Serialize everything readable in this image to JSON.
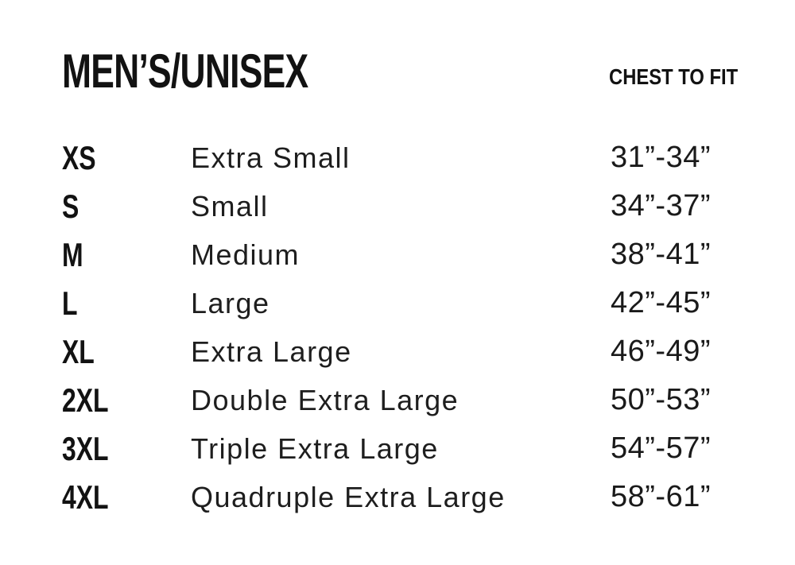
{
  "header": {
    "title": "MEN’S/UNISEX",
    "chest_header": "CHEST TO FIT"
  },
  "size_chart": {
    "rows": [
      {
        "code": "XS",
        "name": "Extra Small",
        "chest": "31”-34”"
      },
      {
        "code": "S",
        "name": "Small",
        "chest": "34”-37”"
      },
      {
        "code": "M",
        "name": "Medium",
        "chest": "38”-41”"
      },
      {
        "code": "L",
        "name": "Large",
        "chest": "42”-45”"
      },
      {
        "code": "XL",
        "name": "Extra Large",
        "chest": "46”-49”"
      },
      {
        "code": "2XL",
        "name": "Double Extra Large",
        "chest": "50”-53”"
      },
      {
        "code": "3XL",
        "name": "Triple Extra Large",
        "chest": "54”-57”"
      },
      {
        "code": "4XL",
        "name": "Quadruple Extra Large",
        "chest": "58”-61”"
      }
    ]
  }
}
